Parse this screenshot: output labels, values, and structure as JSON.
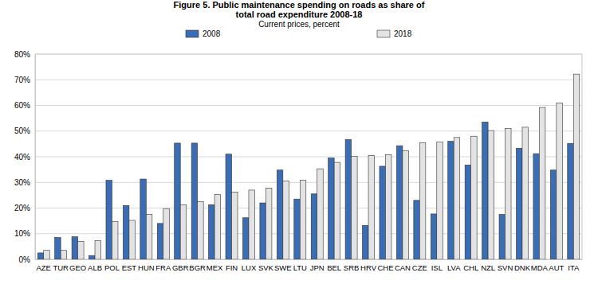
{
  "chart_data": {
    "type": "bar",
    "title": [
      "Figure 5. Public maintenance spending on roads as share of",
      "total road expenditure 2008-18"
    ],
    "subtitle": "Current prices, percent",
    "categories": [
      "AZE",
      "TUR",
      "GEO",
      "ALB",
      "POL",
      "EST",
      "HUN",
      "FRA",
      "GBR",
      "BGR",
      "MEX",
      "FIN",
      "LUX",
      "SVK",
      "SWE",
      "LTU",
      "JPN",
      "BEL",
      "SRB",
      "HRV",
      "CHE",
      "CAN",
      "CZE",
      "ISL",
      "LVA",
      "CHL",
      "NZL",
      "SVN",
      "DNK",
      "MDA",
      "AUT",
      "ITA"
    ],
    "series": [
      {
        "name": "2008",
        "color": "#3a6db3",
        "values": [
          2.5,
          8.5,
          8.8,
          1.5,
          30.8,
          21,
          31.3,
          14,
          45.3,
          45.3,
          21.3,
          41,
          16.2,
          22,
          34.8,
          23.5,
          25.5,
          39.5,
          46.7,
          13.2,
          36.3,
          44.3,
          23,
          17.7,
          46,
          36.8,
          53.5,
          17.5,
          43.3,
          41.2,
          34.8,
          45.2
        ]
      },
      {
        "name": "2018",
        "color": "#e3e3e3",
        "values": [
          3.5,
          3.5,
          7,
          7.3,
          14.8,
          15.2,
          17.5,
          19.8,
          21.3,
          22.5,
          25.3,
          26.2,
          27,
          27.8,
          30.5,
          30.8,
          35.3,
          37.8,
          40.2,
          40.5,
          40.8,
          42.3,
          45.5,
          45.7,
          47.5,
          48,
          50.2,
          51,
          51.5,
          59.2,
          61,
          72.2
        ]
      }
    ],
    "ylim": [
      0,
      80
    ],
    "yticks": [
      {
        "value": 0,
        "label": "0%"
      },
      {
        "value": 10,
        "label": "10%"
      },
      {
        "value": 20,
        "label": "20%"
      },
      {
        "value": 30,
        "label": "30%"
      },
      {
        "value": 40,
        "label": "40%"
      },
      {
        "value": 50,
        "label": "50%"
      },
      {
        "value": 60,
        "label": "60%"
      },
      {
        "value": 70,
        "label": "70%"
      },
      {
        "value": 80,
        "label": "80%"
      }
    ],
    "grid": true,
    "legend": "top"
  }
}
